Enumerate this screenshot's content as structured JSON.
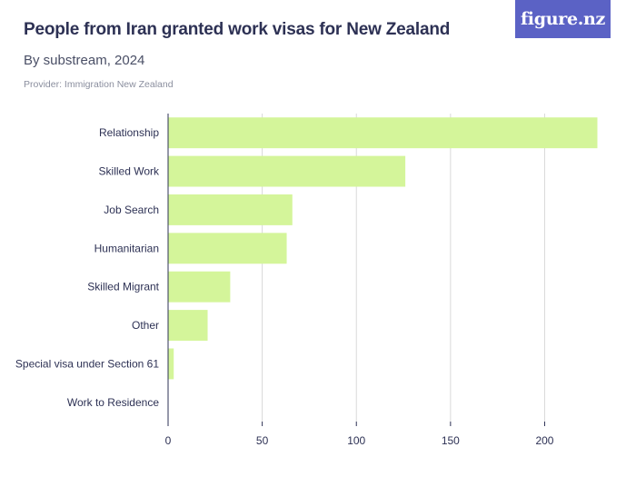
{
  "header": {
    "title": "People from Iran granted work visas for New Zealand",
    "subtitle": "By substream, 2024",
    "provider": "Provider: Immigration New Zealand",
    "logo": "figure.nz"
  },
  "colors": {
    "bar": "#d4f59a",
    "grid": "#d9d9d9",
    "axis": "#2d3154",
    "text": "#2d3154",
    "logo_bg": "#5b62c5"
  },
  "chart_data": {
    "type": "bar",
    "orientation": "horizontal",
    "categories": [
      "Relationship",
      "Skilled Work",
      "Job Search",
      "Humanitarian",
      "Skilled Migrant",
      "Other",
      "Special visa under Section 61",
      "Work to Residence"
    ],
    "values": [
      228,
      126,
      66,
      63,
      33,
      21,
      3,
      0
    ],
    "xlim": [
      0,
      235
    ],
    "xticks": [
      0,
      50,
      100,
      150,
      200
    ],
    "grid": true,
    "title": "People from Iran granted work visas for New Zealand",
    "subtitle": "By substream, 2024",
    "xlabel": "",
    "ylabel": ""
  }
}
